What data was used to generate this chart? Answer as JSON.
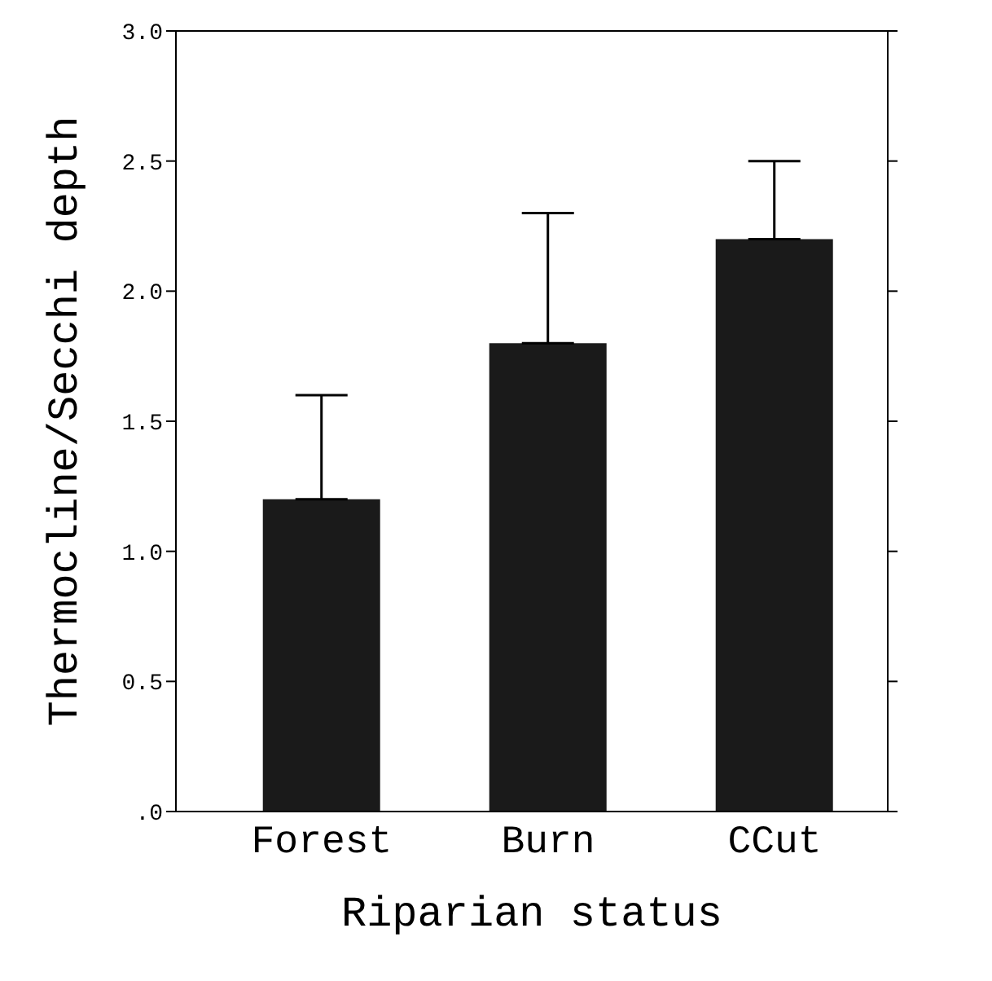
{
  "chart_data": {
    "type": "bar",
    "xlabel": "Riparian status",
    "ylabel": "Thermocline/Secchi depth",
    "categories": [
      "Forest",
      "Burn",
      "CCut"
    ],
    "values": [
      1.2,
      1.8,
      2.2
    ],
    "errors": [
      [
        1.2,
        1.6
      ],
      [
        1.8,
        2.3
      ],
      [
        2.2,
        2.5
      ]
    ],
    "color": "#1a1a1a",
    "ylim": [
      0,
      3
    ],
    "yticks": [
      {
        "value": 0,
        "label": ".0"
      },
      {
        "value": 0.5,
        "label": "0.5"
      },
      {
        "value": 1,
        "label": "1.0"
      },
      {
        "value": 1.5,
        "label": "1.5"
      },
      {
        "value": 2,
        "label": "2.0"
      },
      {
        "value": 2.5,
        "label": "2.5"
      },
      {
        "value": 3,
        "label": "3.0"
      }
    ],
    "grid": false,
    "legend": false
  }
}
